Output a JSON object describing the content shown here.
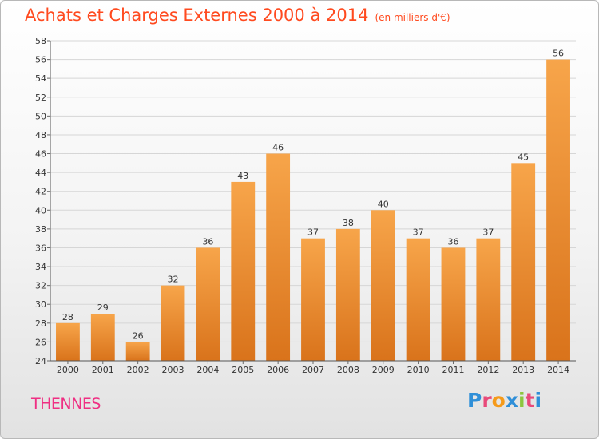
{
  "header": {
    "title": "Achats et Charges Externes 2000 à 2014",
    "subtitle": "(en milliers d'€)"
  },
  "footer": {
    "place": "THENNES",
    "logo": "Proxiti"
  },
  "colors": {
    "bar_light": "#f7a54a",
    "bar_dark": "#d9731b",
    "title": "#ff4a1f",
    "place": "#ef2f83",
    "grid": "#d6d6d6"
  },
  "logo_colors": [
    "#2f8fd8",
    "#e84a7a",
    "#f59a1a",
    "#2f8fd8",
    "#8cc63f",
    "#e84a7a",
    "#2f8fd8"
  ],
  "chart_data": {
    "type": "bar",
    "categories": [
      "2000",
      "2001",
      "2002",
      "2003",
      "2004",
      "2005",
      "2006",
      "2007",
      "2008",
      "2009",
      "2010",
      "2011",
      "2012",
      "2013",
      "2014"
    ],
    "values": [
      28,
      29,
      26,
      32,
      36,
      43,
      46,
      37,
      38,
      40,
      37,
      36,
      37,
      45,
      56
    ],
    "ylim": [
      24,
      58
    ],
    "yticks": [
      24,
      26,
      28,
      30,
      32,
      34,
      36,
      38,
      40,
      42,
      44,
      46,
      48,
      50,
      52,
      54,
      56,
      58
    ],
    "grid": true,
    "data_labels": true
  }
}
